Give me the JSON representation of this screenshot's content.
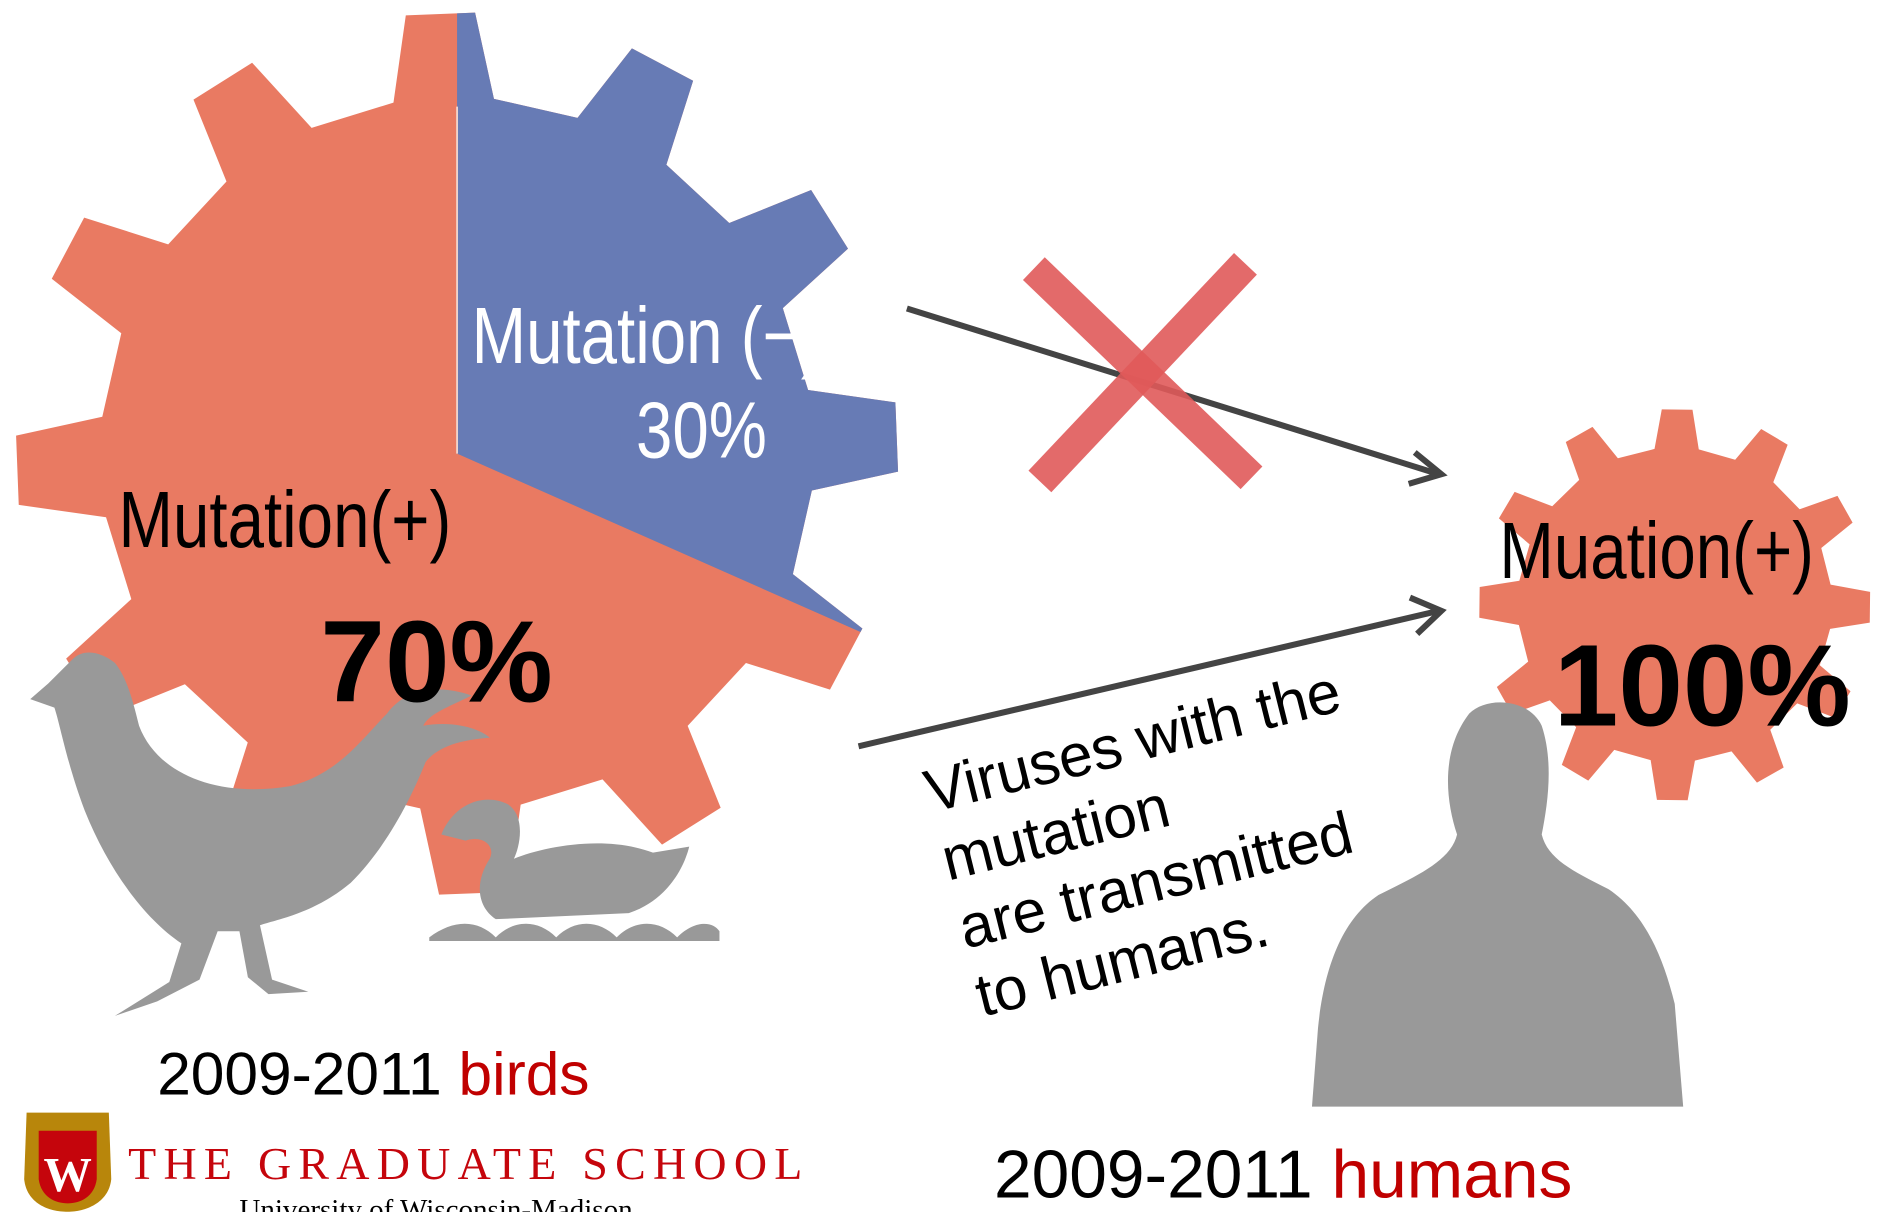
{
  "birds": {
    "negative": {
      "label": "Mutation (−)",
      "percent": "30%"
    },
    "positive": {
      "label": "Mutation(+)",
      "percent": "70%"
    },
    "caption": {
      "years": "2009-2011",
      "group": "birds"
    }
  },
  "humans": {
    "label": "Muation(+)",
    "percent": "100%",
    "caption": {
      "years": "2009-2011",
      "group": "humans"
    }
  },
  "note": [
    "Viruses with the",
    "mutation",
    "are transmitted",
    "to humans."
  ],
  "logo": {
    "name": "THE GRADUATE SCHOOL",
    "university": "University of Wisconsin-Madison"
  }
}
